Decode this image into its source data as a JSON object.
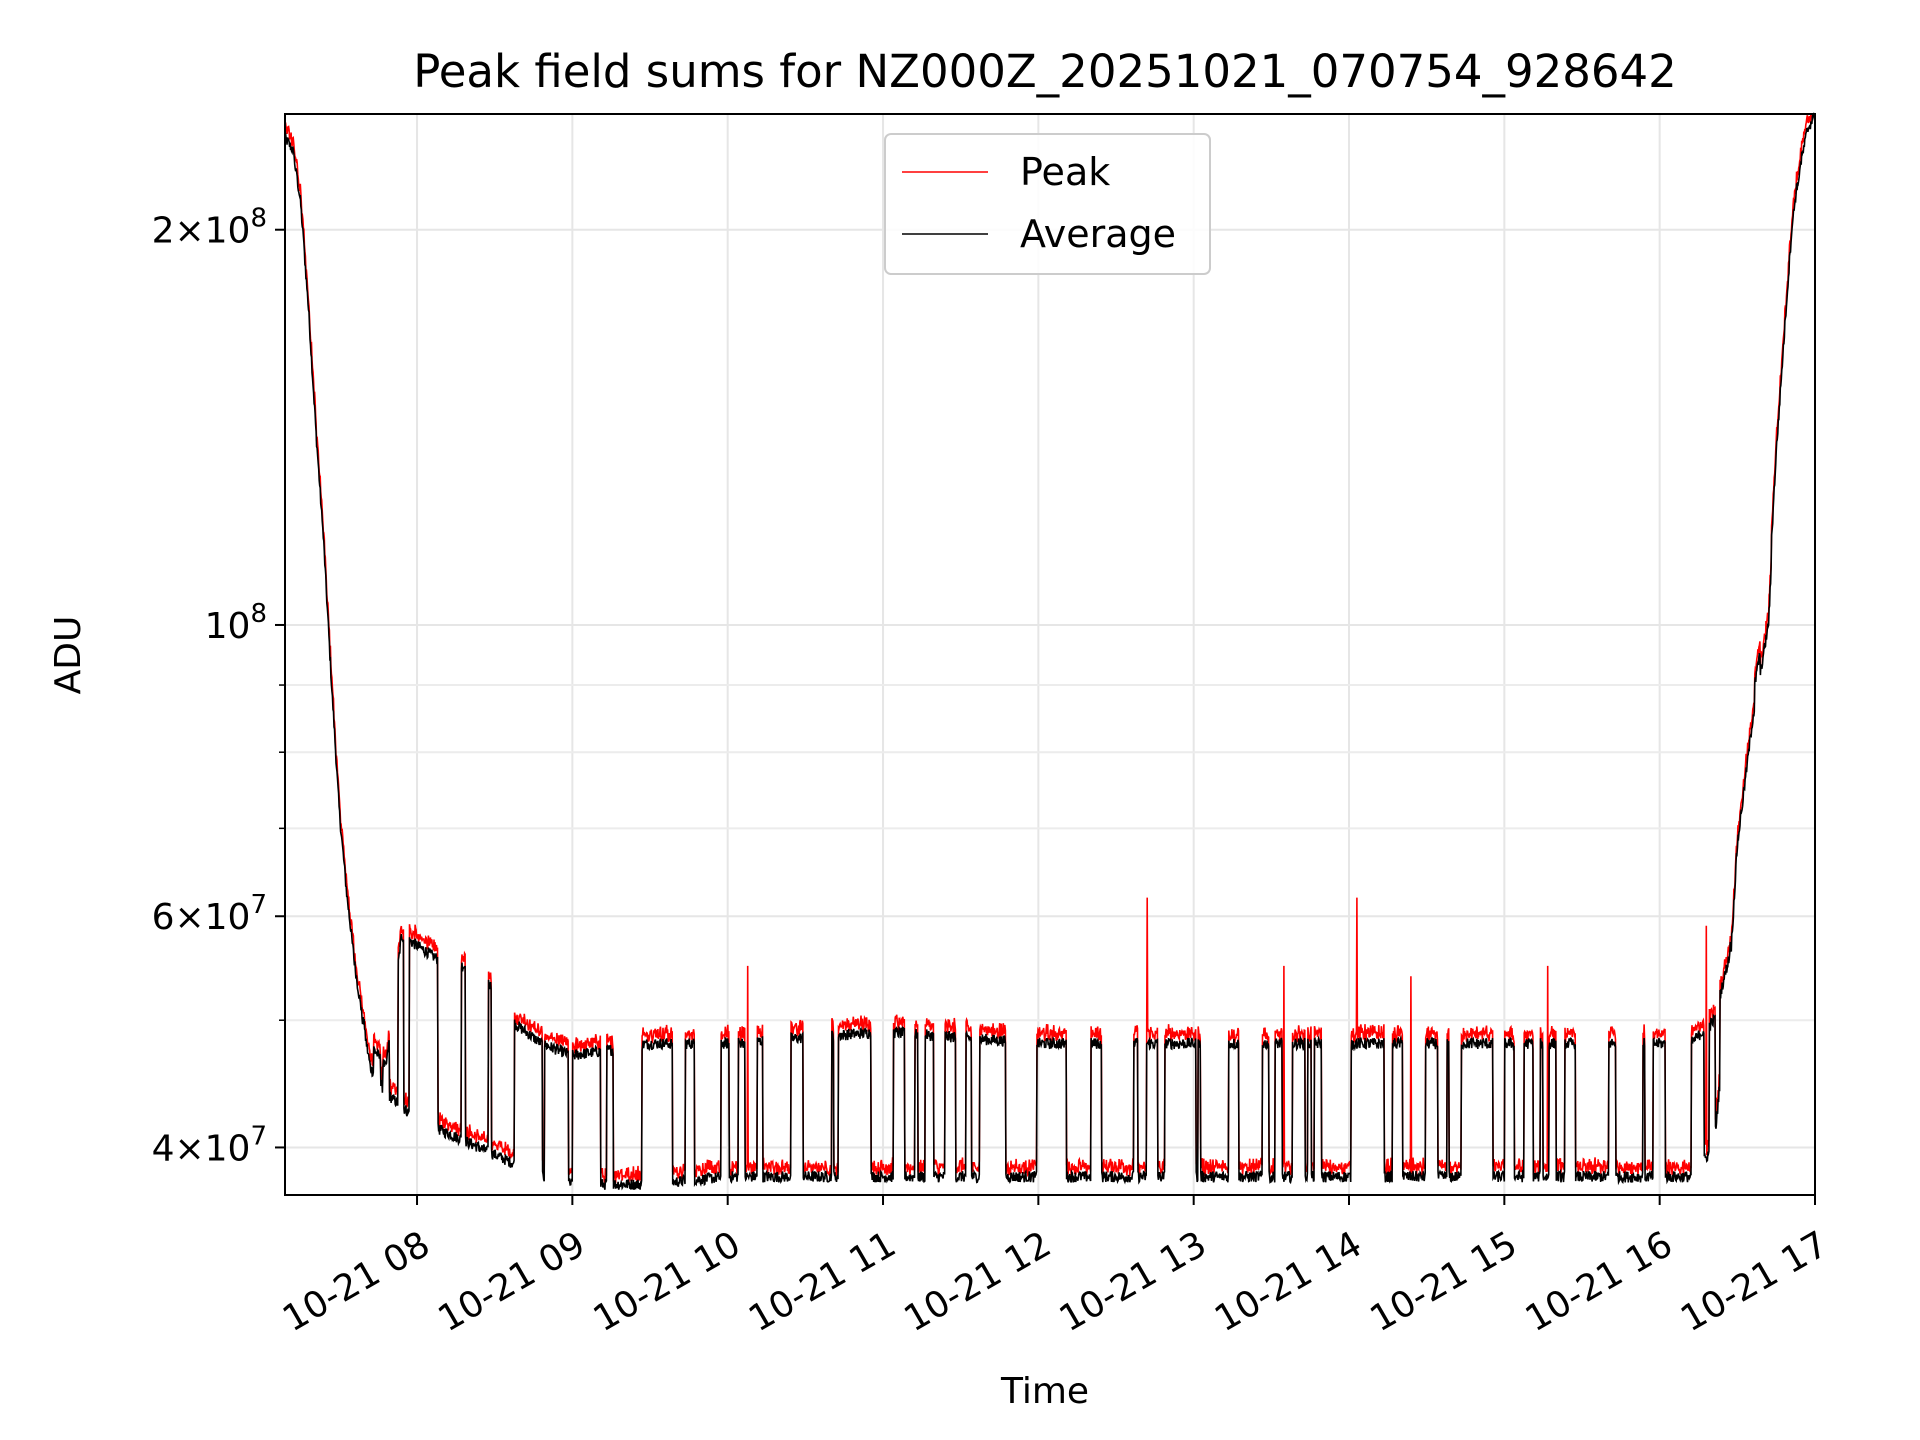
{
  "chart_data": {
    "type": "line",
    "title": "Peak field sums for NZ000Z_20251021_070754_928642",
    "xlabel": "Time",
    "ylabel": "ADU",
    "yscale": "log",
    "xlim": [
      7.15,
      17.0
    ],
    "ylim": [
      36800000,
      245000000
    ],
    "grid": true,
    "legend_position": "top-center",
    "x_ticks": [
      {
        "value": 8,
        "label": "10-21 08"
      },
      {
        "value": 9,
        "label": "10-21 09"
      },
      {
        "value": 10,
        "label": "10-21 10"
      },
      {
        "value": 11,
        "label": "10-21 11"
      },
      {
        "value": 12,
        "label": "10-21 12"
      },
      {
        "value": 13,
        "label": "10-21 13"
      },
      {
        "value": 14,
        "label": "10-21 14"
      },
      {
        "value": 15,
        "label": "10-21 15"
      },
      {
        "value": 16,
        "label": "10-21 16"
      },
      {
        "value": 17,
        "label": "10-21 17"
      }
    ],
    "y_ticks": [
      {
        "value": 40000000,
        "base": "4×10",
        "exp": "7"
      },
      {
        "value": 60000000,
        "base": "6×10",
        "exp": "7"
      },
      {
        "value": 100000000,
        "base": "10",
        "exp": "8"
      },
      {
        "value": 200000000,
        "base": "2×10",
        "exp": "8"
      }
    ],
    "y_minor_ticks": [
      50000000,
      70000000,
      80000000,
      90000000
    ],
    "series": [
      {
        "name": "Peak",
        "color": "#ff0000"
      },
      {
        "name": "Average",
        "color": "#000000"
      }
    ],
    "envelope": {
      "x": [
        7.15,
        7.2,
        7.25,
        7.3,
        7.35,
        7.4,
        7.45,
        7.5,
        7.55,
        7.6,
        7.65,
        7.7,
        7.8,
        7.9,
        8.0,
        8.2,
        8.4,
        8.6,
        8.8,
        9.0,
        9.5,
        10.0,
        11.0,
        12.0,
        13.0,
        14.0,
        15.0,
        16.0,
        16.2,
        16.35,
        16.45,
        16.5,
        16.6,
        16.7,
        16.75,
        16.8,
        16.85,
        16.9,
        16.95,
        17.0
      ],
      "high": [
        235000000,
        230000000,
        210000000,
        175000000,
        140000000,
        115000000,
        90000000,
        72000000,
        62000000,
        55000000,
        50000000,
        48000000,
        46000000,
        58000000,
        57000000,
        55000000,
        55000000,
        50000000,
        48000000,
        47000000,
        48000000,
        48000000,
        49000000,
        48000000,
        48000000,
        48000000,
        48000000,
        48000000,
        48000000,
        50000000,
        56000000,
        70000000,
        88000000,
        105000000,
        135000000,
        165000000,
        200000000,
        225000000,
        240000000,
        245000000
      ],
      "low": [
        235000000,
        230000000,
        210000000,
        175000000,
        140000000,
        115000000,
        90000000,
        72000000,
        62000000,
        55000000,
        50000000,
        46000000,
        44000000,
        43000000,
        42000000,
        41000000,
        40000000,
        39000000,
        38000000,
        37500000,
        37500000,
        38000000,
        38000000,
        38000000,
        38000000,
        38000000,
        38000000,
        38000000,
        38000000,
        40000000,
        54000000,
        68000000,
        85000000,
        100000000,
        130000000,
        160000000,
        195000000,
        222000000,
        238000000,
        245000000
      ]
    },
    "annotations": [
      {
        "x": 10.13,
        "value": 55000000
      },
      {
        "x": 12.7,
        "value": 62000000
      },
      {
        "x": 13.58,
        "value": 55000000
      },
      {
        "x": 14.05,
        "value": 62000000
      },
      {
        "x": 14.4,
        "value": 54000000
      },
      {
        "x": 15.28,
        "value": 55000000
      },
      {
        "x": 16.3,
        "value": 59000000
      }
    ]
  }
}
